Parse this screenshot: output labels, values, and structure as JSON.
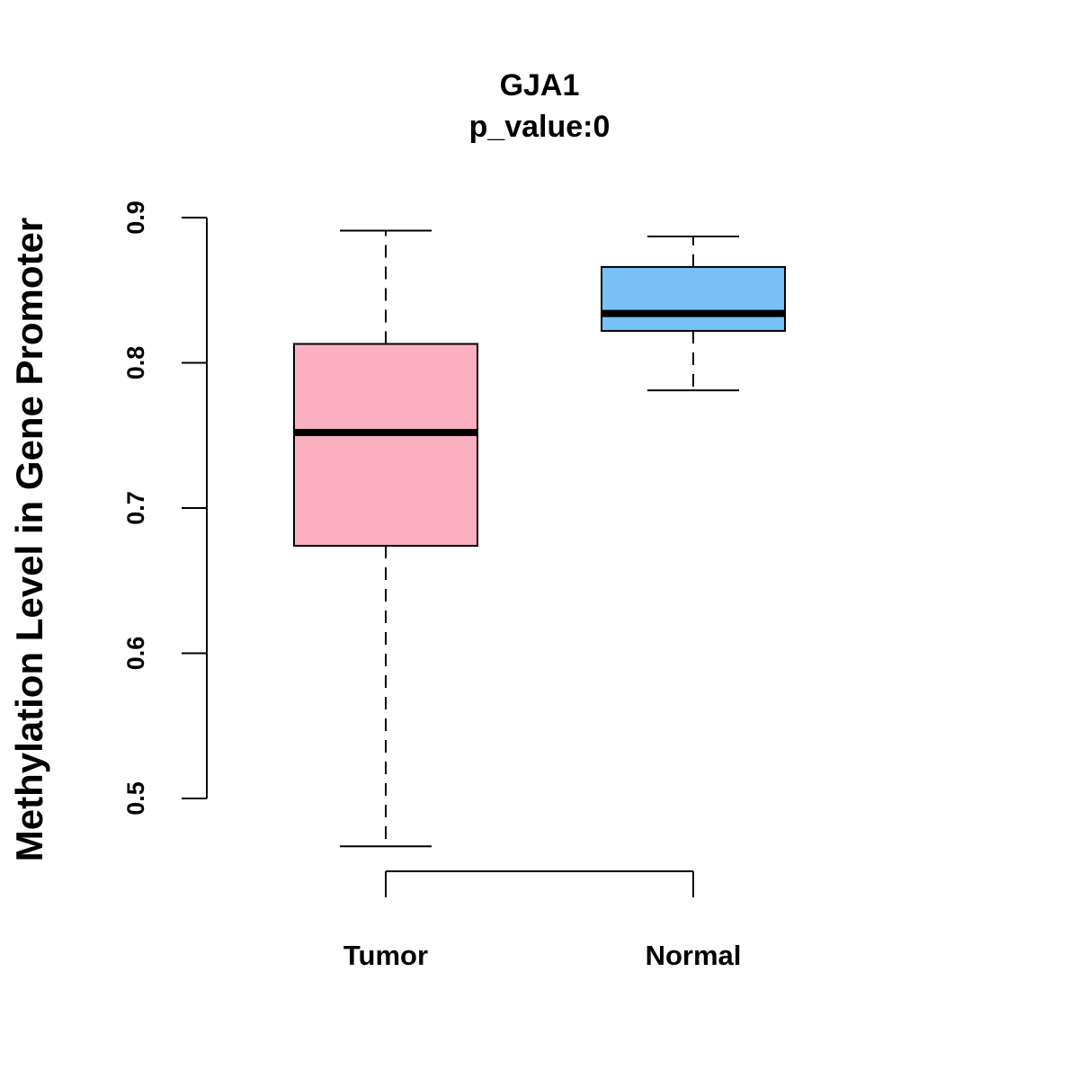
{
  "chart_data": {
    "type": "boxplot",
    "title": "GJA1",
    "subtitle": "p_value:0",
    "ylabel": "Methylation Level in Gene Promoter",
    "xlabel": "",
    "ylim": [
      0.5,
      0.9
    ],
    "yticks": [
      "0.5",
      "0.6",
      "0.7",
      "0.8",
      "0.9"
    ],
    "categories": [
      "Tumor",
      "Normal"
    ],
    "boxes": [
      {
        "category": "Tumor",
        "whisker_low": 0.467,
        "q1": 0.674,
        "median": 0.752,
        "q3": 0.813,
        "whisker_high": 0.891,
        "color": "#FBB0C2"
      },
      {
        "category": "Normal",
        "whisker_low": 0.781,
        "q1": 0.822,
        "median": 0.834,
        "q3": 0.866,
        "whisker_high": 0.887,
        "color": "#78C1F7"
      }
    ],
    "grid": false,
    "legend": "none"
  }
}
